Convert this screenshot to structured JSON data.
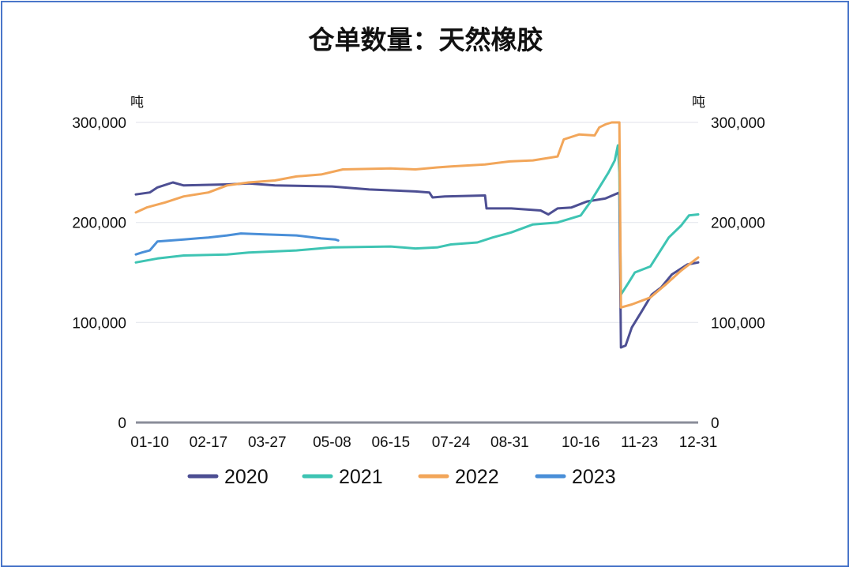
{
  "chart_data": {
    "type": "line",
    "title": "仓单数量：天然橡胶",
    "ylabel_left": "吨",
    "ylabel_right": "吨",
    "ylim": [
      0,
      300000
    ],
    "yticks": [
      0,
      100000,
      200000,
      300000
    ],
    "ytick_labels": [
      "0",
      "100,000",
      "200,000",
      "300,000"
    ],
    "xlim": [
      "01-01",
      "12-31"
    ],
    "xticks": [
      "01-10",
      "02-17",
      "03-27",
      "05-08",
      "06-15",
      "07-24",
      "08-31",
      "10-16",
      "11-23",
      "12-31"
    ],
    "grid": "horizontal",
    "legend_position": "bottom",
    "colors": {
      "2020": "#4d4f93",
      "2021": "#3ec4b3",
      "2022": "#f2a65a",
      "2023": "#4a8fd8"
    },
    "series": [
      {
        "name": "2020",
        "points": [
          [
            "01-01",
            228000
          ],
          [
            "01-10",
            230000
          ],
          [
            "01-15",
            235000
          ],
          [
            "01-25",
            240000
          ],
          [
            "02-01",
            237000
          ],
          [
            "03-01",
            238000
          ],
          [
            "03-15",
            239000
          ],
          [
            "04-01",
            237000
          ],
          [
            "05-08",
            236000
          ],
          [
            "06-01",
            233000
          ],
          [
            "07-01",
            231000
          ],
          [
            "07-10",
            230000
          ],
          [
            "07-12",
            225000
          ],
          [
            "07-20",
            226000
          ],
          [
            "08-15",
            227000
          ],
          [
            "08-16",
            214000
          ],
          [
            "09-01",
            214000
          ],
          [
            "09-20",
            212000
          ],
          [
            "09-25",
            208000
          ],
          [
            "10-01",
            214000
          ],
          [
            "10-10",
            215000
          ],
          [
            "10-20",
            221000
          ],
          [
            "11-01",
            224000
          ],
          [
            "11-10",
            230000
          ],
          [
            "11-11",
            75000
          ],
          [
            "11-14",
            77000
          ],
          [
            "11-18",
            95000
          ],
          [
            "11-24",
            110000
          ],
          [
            "12-01",
            128000
          ],
          [
            "12-07",
            135000
          ],
          [
            "12-14",
            148000
          ],
          [
            "12-24",
            158000
          ],
          [
            "12-31",
            160000
          ]
        ]
      },
      {
        "name": "2021",
        "points": [
          [
            "01-01",
            160000
          ],
          [
            "01-15",
            164000
          ],
          [
            "02-01",
            167000
          ],
          [
            "03-01",
            168000
          ],
          [
            "03-15",
            170000
          ],
          [
            "04-15",
            172000
          ],
          [
            "05-08",
            175000
          ],
          [
            "06-15",
            176000
          ],
          [
            "07-01",
            174000
          ],
          [
            "07-15",
            175000
          ],
          [
            "07-24",
            178000
          ],
          [
            "08-10",
            180000
          ],
          [
            "08-20",
            185000
          ],
          [
            "09-01",
            190000
          ],
          [
            "09-15",
            198000
          ],
          [
            "10-01",
            200000
          ],
          [
            "10-16",
            207000
          ],
          [
            "10-22",
            220000
          ],
          [
            "10-28",
            235000
          ],
          [
            "11-03",
            250000
          ],
          [
            "11-07",
            262000
          ],
          [
            "11-09",
            277000
          ],
          [
            "11-10",
            250000
          ],
          [
            "11-11",
            128000
          ],
          [
            "11-16",
            140000
          ],
          [
            "11-20",
            150000
          ],
          [
            "11-30",
            156000
          ],
          [
            "12-05",
            168000
          ],
          [
            "12-12",
            185000
          ],
          [
            "12-20",
            197000
          ],
          [
            "12-25",
            207000
          ],
          [
            "12-31",
            208000
          ]
        ]
      },
      {
        "name": "2022",
        "points": [
          [
            "01-01",
            210000
          ],
          [
            "01-08",
            215000
          ],
          [
            "01-20",
            220000
          ],
          [
            "02-01",
            226000
          ],
          [
            "02-17",
            230000
          ],
          [
            "03-01",
            237000
          ],
          [
            "03-15",
            240000
          ],
          [
            "04-01",
            242000
          ],
          [
            "04-15",
            246000
          ],
          [
            "05-01",
            248000
          ],
          [
            "05-15",
            253000
          ],
          [
            "06-15",
            254000
          ],
          [
            "07-01",
            253000
          ],
          [
            "07-15",
            255000
          ],
          [
            "07-24",
            256000
          ],
          [
            "08-15",
            258000
          ],
          [
            "08-31",
            261000
          ],
          [
            "09-15",
            262000
          ],
          [
            "10-01",
            266000
          ],
          [
            "10-05",
            283000
          ],
          [
            "10-15",
            288000
          ],
          [
            "10-25",
            287000
          ],
          [
            "10-28",
            295000
          ],
          [
            "11-01",
            298000
          ],
          [
            "11-05",
            300000
          ],
          [
            "11-10",
            300000
          ],
          [
            "11-11",
            115000
          ],
          [
            "11-18",
            118000
          ],
          [
            "11-30",
            125000
          ],
          [
            "12-10",
            138000
          ],
          [
            "12-20",
            152000
          ],
          [
            "12-31",
            165000
          ]
        ]
      },
      {
        "name": "2023",
        "points": [
          [
            "01-01",
            168000
          ],
          [
            "01-05",
            170000
          ],
          [
            "01-10",
            172000
          ],
          [
            "01-15",
            181000
          ],
          [
            "02-01",
            183000
          ],
          [
            "02-17",
            185000
          ],
          [
            "03-01",
            187000
          ],
          [
            "03-10",
            189000
          ],
          [
            "03-27",
            188000
          ],
          [
            "04-15",
            187000
          ],
          [
            "05-01",
            184000
          ],
          [
            "05-10",
            183000
          ],
          [
            "05-12",
            182000
          ]
        ]
      }
    ]
  }
}
